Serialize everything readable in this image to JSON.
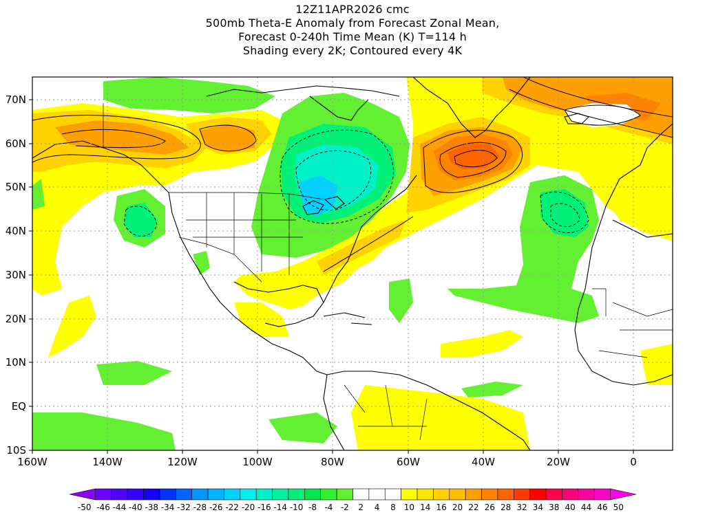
{
  "header": {
    "run": "12Z11APR2026 cmc",
    "line2": "500mb Theta-E Anomaly from Forecast Zonal Mean,",
    "line3": "Forecast 0-240h Time Mean (K) T=114 h",
    "line4": "Shading every 2K; Contoured every 4K"
  },
  "axes": {
    "lat_labels": [
      "70N",
      "60N",
      "50N",
      "40N",
      "30N",
      "20N",
      "10N",
      "EQ",
      "10S"
    ],
    "lon_labels": [
      "160W",
      "140W",
      "120W",
      "100W",
      "80W",
      "60W",
      "40W",
      "20W",
      "0"
    ]
  },
  "colorbar": {
    "labels": [
      "-50",
      "-46",
      "-44",
      "-40",
      "-38",
      "-34",
      "-32",
      "-28",
      "-26",
      "-22",
      "-20",
      "-16",
      "-14",
      "-10",
      "-8",
      "-4",
      "-2",
      "2",
      "4",
      "8",
      "10",
      "14",
      "16",
      "20",
      "22",
      "26",
      "28",
      "32",
      "34",
      "38",
      "40",
      "44",
      "46",
      "50"
    ],
    "colors": [
      "#8c00ff",
      "#6e00ff",
      "#5000ff",
      "#3200ff",
      "#1400ff",
      "#0032ff",
      "#0064ff",
      "#0096ff",
      "#00b4ff",
      "#00d2ff",
      "#00f0f0",
      "#00f0c8",
      "#00f0a0",
      "#00f078",
      "#00e650",
      "#32f032",
      "#64f032",
      "#ffffff",
      "#ffffff",
      "#ffffff",
      "#ffff00",
      "#ffe600",
      "#ffd200",
      "#ffbe00",
      "#ffa000",
      "#ff8200",
      "#ff6400",
      "#ff3c00",
      "#ff0000",
      "#ff0050",
      "#ff0078",
      "#ff00a0",
      "#ff00c8",
      "#ff00f0"
    ]
  },
  "legend": {
    "title": ""
  }
}
